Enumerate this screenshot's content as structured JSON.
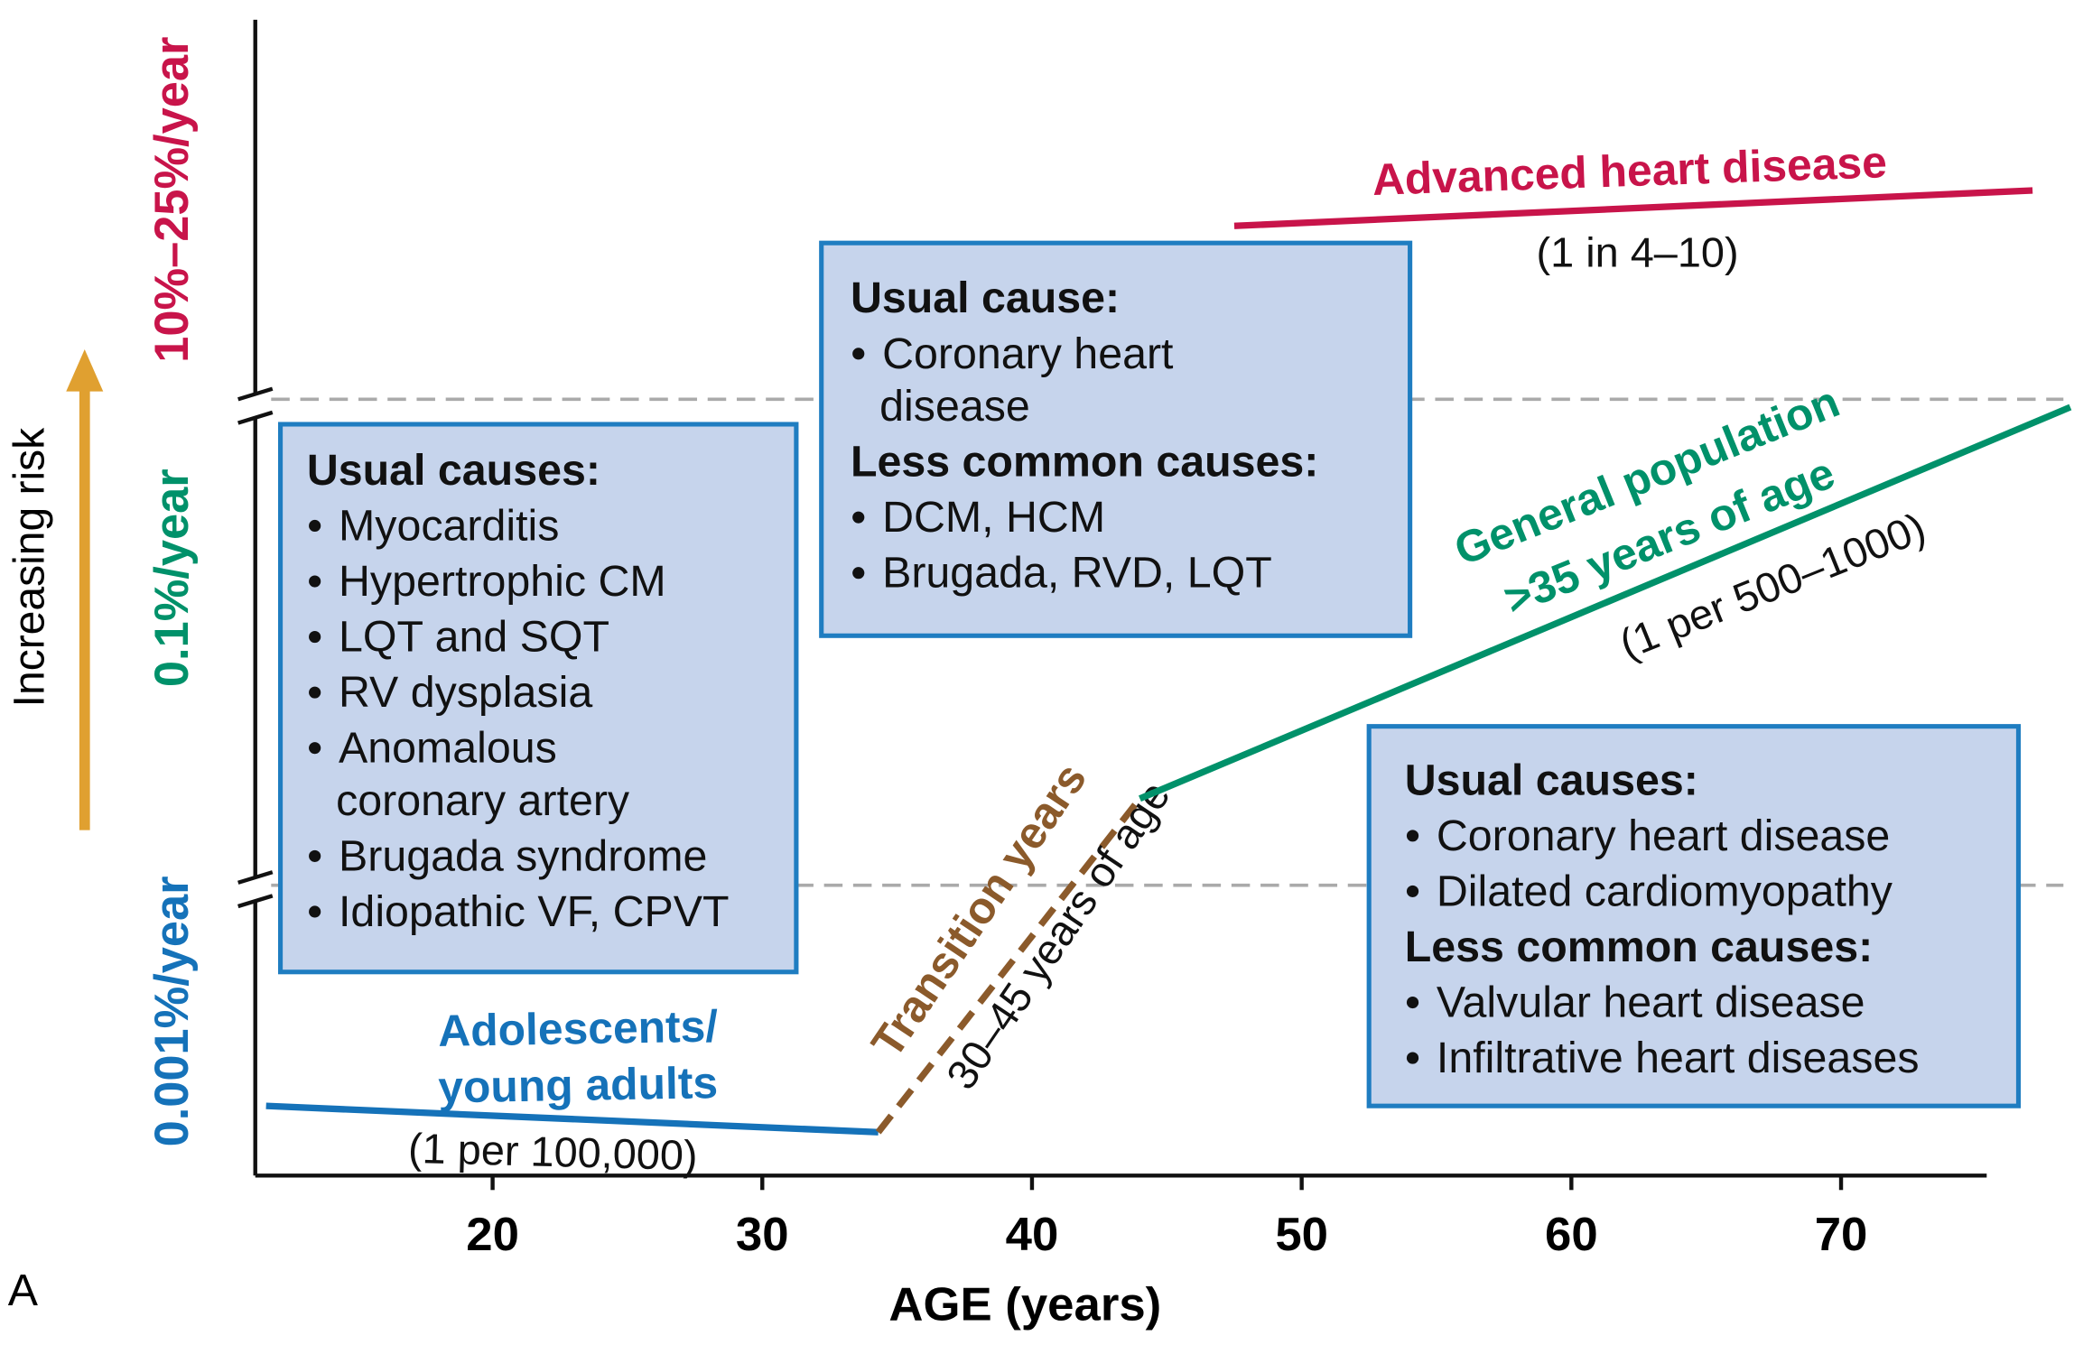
{
  "chart_data": {
    "type": "line",
    "x_label": "AGE (years)",
    "panel_label": "A",
    "xlim": [
      11.2,
      75.4
    ],
    "xticks": [
      20,
      30,
      40,
      50,
      60,
      70
    ],
    "y_label": "Increasing risk",
    "y_levels": [
      {
        "label": "0.001%/year",
        "color": "#1572b9"
      },
      {
        "label": "0.1%/year",
        "color": "#00916a"
      },
      {
        "label": "10%–25%/year",
        "color": "#c8144a"
      }
    ],
    "series": [
      {
        "label_lines": [
          "Adolescents/",
          "young adults"
        ],
        "rate": "(1 per 100,000)",
        "color": "#1572b9",
        "x": [
          11.6,
          34.3
        ]
      },
      {
        "label_lines": [
          "Transition years"
        ],
        "rate": "30–45 years of age",
        "color": "#8b5a2b",
        "dashed": true,
        "x": [
          34.3,
          44.0
        ]
      },
      {
        "label_lines": [
          "General population",
          ">35 years of age"
        ],
        "rate": "(1 per 500–1000)",
        "color": "#00916a",
        "x": [
          44.0,
          78.5
        ]
      },
      {
        "label_lines": [
          "Advanced heart disease"
        ],
        "rate": "(1 in 4–10)",
        "color": "#c8144a",
        "x": [
          47.5,
          77.1
        ]
      }
    ],
    "boxes": [
      {
        "sections": [
          {
            "heading": "Usual causes:",
            "items": [
              [
                "Myocarditis"
              ],
              [
                "Hypertrophic CM"
              ],
              [
                "LQT and SQT"
              ],
              [
                "RV dysplasia"
              ],
              [
                "Anomalous",
                "coronary artery"
              ],
              [
                "Brugada syndrome"
              ],
              [
                "Idiopathic VF, CPVT"
              ]
            ]
          }
        ]
      },
      {
        "sections": [
          {
            "heading": "Usual cause:",
            "items": [
              [
                "Coronary heart",
                "disease"
              ]
            ]
          },
          {
            "heading": "Less common causes:",
            "items": [
              [
                "DCM, HCM"
              ],
              [
                "Brugada, RVD, LQT"
              ]
            ]
          }
        ]
      },
      {
        "sections": [
          {
            "heading": "Usual causes:",
            "items": [
              [
                "Coronary heart disease"
              ],
              [
                "Dilated cardiomyopathy"
              ]
            ]
          },
          {
            "heading": "Less common causes:",
            "items": [
              [
                "Valvular heart disease"
              ],
              [
                "Infiltrative heart diseases"
              ]
            ]
          }
        ]
      }
    ]
  }
}
